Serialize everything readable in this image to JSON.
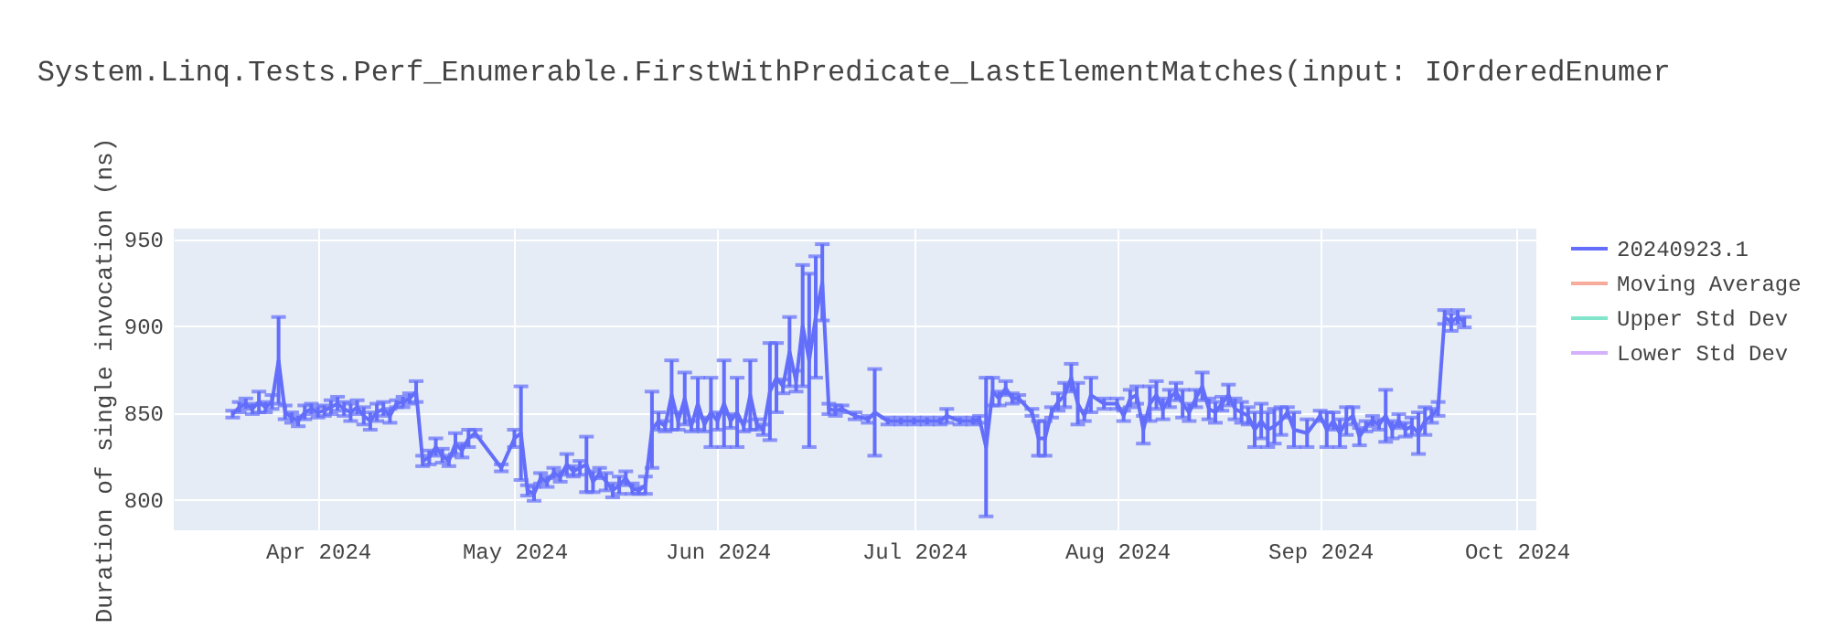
{
  "chart_data": {
    "type": "line",
    "title": "System.Linq.Tests.Perf_Enumerable.FirstWithPredicate_LastElementMatches(input: IOrderedEnumer",
    "ylabel": "Duration of single invocation (ns)",
    "x": [
      "2024-03-19",
      "2024-03-20",
      "2024-03-21",
      "2024-03-22",
      "2024-03-23",
      "2024-03-24",
      "2024-03-25",
      "2024-03-26",
      "2024-03-27",
      "2024-03-28",
      "2024-03-29",
      "2024-03-30",
      "2024-03-31",
      "2024-04-01",
      "2024-04-02",
      "2024-04-03",
      "2024-04-04",
      "2024-04-05",
      "2024-04-06",
      "2024-04-07",
      "2024-04-08",
      "2024-04-09",
      "2024-04-10",
      "2024-04-11",
      "2024-04-12",
      "2024-04-13",
      "2024-04-14",
      "2024-04-15",
      "2024-04-16",
      "2024-04-17",
      "2024-04-18",
      "2024-04-19",
      "2024-04-20",
      "2024-04-21",
      "2024-04-22",
      "2024-04-23",
      "2024-04-24",
      "2024-04-25",
      "2024-04-29",
      "2024-05-01",
      "2024-05-02",
      "2024-05-03",
      "2024-05-04",
      "2024-05-05",
      "2024-05-06",
      "2024-05-07",
      "2024-05-08",
      "2024-05-09",
      "2024-05-10",
      "2024-05-11",
      "2024-05-12",
      "2024-05-13",
      "2024-05-14",
      "2024-05-15",
      "2024-05-16",
      "2024-05-17",
      "2024-05-18",
      "2024-05-19",
      "2024-05-20",
      "2024-05-21",
      "2024-05-22",
      "2024-05-23",
      "2024-05-24",
      "2024-05-25",
      "2024-05-26",
      "2024-05-27",
      "2024-05-28",
      "2024-05-29",
      "2024-05-30",
      "2024-05-31",
      "2024-06-01",
      "2024-06-02",
      "2024-06-03",
      "2024-06-04",
      "2024-06-05",
      "2024-06-06",
      "2024-06-07",
      "2024-06-08",
      "2024-06-09",
      "2024-06-10",
      "2024-06-11",
      "2024-06-12",
      "2024-06-13",
      "2024-06-14",
      "2024-06-15",
      "2024-06-16",
      "2024-06-17",
      "2024-06-18",
      "2024-06-19",
      "2024-06-20",
      "2024-06-22",
      "2024-06-24",
      "2024-06-25",
      "2024-06-27",
      "2024-06-29",
      "2024-07-01",
      "2024-07-03",
      "2024-07-05",
      "2024-07-06",
      "2024-07-08",
      "2024-07-10",
      "2024-07-11",
      "2024-07-12",
      "2024-07-13",
      "2024-07-14",
      "2024-07-15",
      "2024-07-16",
      "2024-07-17",
      "2024-07-19",
      "2024-07-20",
      "2024-07-21",
      "2024-07-22",
      "2024-07-23",
      "2024-07-24",
      "2024-07-25",
      "2024-07-26",
      "2024-07-27",
      "2024-07-28",
      "2024-07-30",
      "2024-08-01",
      "2024-08-02",
      "2024-08-03",
      "2024-08-04",
      "2024-08-05",
      "2024-08-06",
      "2024-08-07",
      "2024-08-08",
      "2024-08-09",
      "2024-08-10",
      "2024-08-11",
      "2024-08-12",
      "2024-08-13",
      "2024-08-14",
      "2024-08-15",
      "2024-08-16",
      "2024-08-17",
      "2024-08-18",
      "2024-08-19",
      "2024-08-20",
      "2024-08-21",
      "2024-08-22",
      "2024-08-23",
      "2024-08-24",
      "2024-08-25",
      "2024-08-26",
      "2024-08-27",
      "2024-08-28",
      "2024-08-30",
      "2024-09-01",
      "2024-09-02",
      "2024-09-03",
      "2024-09-04",
      "2024-09-05",
      "2024-09-06",
      "2024-09-07",
      "2024-09-08",
      "2024-09-09",
      "2024-09-10",
      "2024-09-11",
      "2024-09-12",
      "2024-09-13",
      "2024-09-14",
      "2024-09-15",
      "2024-09-16",
      "2024-09-17",
      "2024-09-18",
      "2024-09-19",
      "2024-09-20",
      "2024-09-21",
      "2024-09-22",
      "2024-09-23"
    ],
    "series": [
      {
        "name": "20240923.1",
        "color": "#636efa",
        "values": [
          849,
          853,
          855,
          852,
          856,
          853,
          856,
          880,
          850,
          847,
          845,
          850,
          852,
          850,
          851,
          853,
          855,
          852,
          850,
          853,
          848,
          845,
          850,
          852,
          848,
          855,
          856,
          858,
          862,
          822,
          824,
          830,
          825,
          822,
          832,
          828,
          835,
          838,
          818,
          835,
          838,
          805,
          803,
          812,
          810,
          815,
          813,
          820,
          816,
          818,
          820,
          810,
          815,
          810,
          805,
          808,
          812,
          806,
          805,
          808,
          840,
          845,
          842,
          860,
          845,
          858,
          842,
          855,
          843,
          850,
          845,
          855,
          845,
          850,
          842,
          860,
          843,
          840,
          862,
          870,
          865,
          885,
          868,
          900,
          880,
          905,
          925,
          852,
          851,
          852,
          848,
          846,
          850,
          845,
          845,
          845,
          845,
          845,
          848,
          845,
          845,
          846,
          830,
          862,
          858,
          864,
          858,
          858,
          850,
          835,
          835,
          850,
          856,
          860,
          870,
          855,
          848,
          860,
          855,
          855,
          848,
          858,
          860,
          840,
          855,
          860,
          852,
          858,
          862,
          855,
          850,
          858,
          865,
          852,
          850,
          855,
          860,
          852,
          850,
          848,
          840,
          845,
          840,
          842,
          845,
          850,
          840,
          838,
          848,
          840,
          845,
          838,
          845,
          848,
          836,
          842,
          845,
          843,
          848,
          840,
          845,
          840,
          842,
          838,
          845,
          848,
          852,
          905,
          902,
          905,
          902
        ],
        "errors": [
          2,
          3,
          3,
          3,
          6,
          3,
          4,
          25,
          4,
          3,
          3,
          4,
          3,
          3,
          3,
          4,
          4,
          4,
          5,
          4,
          5,
          5,
          5,
          4,
          4,
          2,
          3,
          3,
          6,
          3,
          4,
          5,
          4,
          3,
          6,
          4,
          5,
          2,
          2,
          5,
          27,
          3,
          4,
          3,
          3,
          3,
          3,
          6,
          3,
          4,
          16,
          6,
          3,
          5,
          4,
          5,
          4,
          3,
          2,
          5,
          22,
          5,
          3,
          20,
          5,
          15,
          3,
          15,
          4,
          20,
          5,
          25,
          4,
          20,
          3,
          20,
          3,
          3,
          28,
          20,
          4,
          20,
          6,
          35,
          50,
          35,
          22,
          3,
          3,
          2,
          2,
          2,
          25,
          2,
          2,
          2,
          2,
          2,
          4,
          2,
          2,
          2,
          40,
          8,
          4,
          4,
          3,
          2,
          2,
          10,
          10,
          3,
          5,
          7,
          8,
          12,
          3,
          10,
          3,
          3,
          3,
          5,
          5,
          8,
          10,
          8,
          6,
          5,
          5,
          8,
          5,
          5,
          8,
          6,
          6,
          4,
          6,
          6,
          6,
          5,
          10,
          10,
          10,
          10,
          8,
          3,
          10,
          8,
          3,
          10,
          5,
          8,
          8,
          5,
          5,
          3,
          3,
          3,
          15,
          5,
          4,
          4,
          5,
          12,
          8,
          4,
          4,
          4,
          5,
          4,
          3
        ]
      },
      {
        "name": "Moving Average",
        "color": "#f7ab9d",
        "values": [
          null,
          null,
          null,
          null,
          null,
          null,
          null,
          null,
          null,
          null,
          null,
          null,
          null,
          null,
          null,
          null,
          null,
          null,
          null,
          null,
          null,
          null,
          null,
          null,
          null,
          null,
          null,
          null,
          null,
          null,
          null,
          null,
          null,
          null,
          null,
          null,
          null,
          null,
          null,
          null,
          null,
          null,
          null,
          null,
          null,
          null,
          null,
          null,
          null,
          null,
          null,
          null,
          null,
          null,
          null,
          null,
          null,
          null,
          null,
          null,
          null,
          null,
          null,
          null,
          null,
          null,
          null,
          null,
          null,
          null,
          null,
          null,
          null,
          null,
          null,
          null,
          null,
          null,
          null,
          null,
          null,
          null,
          null,
          null,
          null,
          null,
          null,
          null,
          null,
          null,
          null,
          null,
          null,
          null,
          null,
          null,
          null,
          null,
          null,
          null,
          null,
          null,
          null,
          null,
          null,
          null,
          null,
          null,
          null,
          null,
          null,
          null,
          null,
          null,
          null,
          null,
          null,
          null,
          null,
          null,
          null,
          null,
          null,
          null,
          null,
          null,
          null,
          null,
          null,
          null,
          null,
          null,
          null,
          null,
          null,
          null,
          null,
          null,
          null,
          null,
          null,
          null,
          null,
          null,
          null,
          null,
          null,
          null,
          null,
          null,
          null,
          null,
          null,
          null,
          null,
          null,
          null,
          null,
          null,
          null,
          null,
          null,
          null,
          null,
          null,
          null,
          null,
          null,
          null,
          null,
          null
        ]
      },
      {
        "name": "Upper Std Dev",
        "color": "#80e5cb",
        "values": [
          null,
          null,
          null,
          null,
          null,
          null,
          null,
          null,
          null,
          null,
          null,
          null,
          null,
          null,
          null,
          null,
          null,
          null,
          null,
          null,
          null,
          null,
          null,
          null,
          null,
          null,
          null,
          null,
          null,
          null,
          null,
          null,
          null,
          null,
          null,
          null,
          null,
          null,
          null,
          null,
          null,
          null,
          null,
          null,
          null,
          null,
          null,
          null,
          null,
          null,
          null,
          null,
          null,
          null,
          null,
          null,
          null,
          null,
          null,
          null,
          null,
          null,
          null,
          null,
          null,
          null,
          null,
          null,
          null,
          null,
          null,
          null,
          null,
          null,
          null,
          null,
          null,
          null,
          null,
          null,
          null,
          null,
          null,
          null,
          null,
          null,
          null,
          null,
          null,
          null,
          null,
          null,
          null,
          null,
          null,
          null,
          null,
          null,
          null,
          null,
          null,
          null,
          null,
          null,
          null,
          null,
          null,
          null,
          null,
          null,
          null,
          null,
          null,
          null,
          null,
          null,
          null,
          null,
          null,
          null,
          null,
          null,
          null,
          null,
          null,
          null,
          null,
          null,
          null,
          null,
          null,
          null,
          null,
          null,
          null,
          null,
          null,
          null,
          null,
          null,
          null,
          null,
          null,
          null,
          null,
          null,
          null,
          null,
          null,
          null,
          null,
          null,
          null,
          null,
          null,
          null,
          null,
          null,
          null,
          null,
          null,
          null,
          null,
          null,
          null,
          null,
          null,
          null,
          null,
          null,
          null
        ]
      },
      {
        "name": "Lower Std Dev",
        "color": "#d5b1fc",
        "values": [
          null,
          null,
          null,
          null,
          null,
          null,
          null,
          null,
          null,
          null,
          null,
          null,
          null,
          null,
          null,
          null,
          null,
          null,
          null,
          null,
          null,
          null,
          null,
          null,
          null,
          null,
          null,
          null,
          null,
          null,
          null,
          null,
          null,
          null,
          null,
          null,
          null,
          null,
          null,
          null,
          null,
          null,
          null,
          null,
          null,
          null,
          null,
          null,
          null,
          null,
          null,
          null,
          null,
          null,
          null,
          null,
          null,
          null,
          null,
          null,
          null,
          null,
          null,
          null,
          null,
          null,
          null,
          null,
          null,
          null,
          null,
          null,
          null,
          null,
          null,
          null,
          null,
          null,
          null,
          null,
          null,
          null,
          null,
          null,
          null,
          null,
          null,
          null,
          null,
          null,
          null,
          null,
          null,
          null,
          null,
          null,
          null,
          null,
          null,
          null,
          null,
          null,
          null,
          null,
          null,
          null,
          null,
          null,
          null,
          null,
          null,
          null,
          null,
          null,
          null,
          null,
          null,
          null,
          null,
          null,
          null,
          null,
          null,
          null,
          null,
          null,
          null,
          null,
          null,
          null,
          null,
          null,
          null,
          null,
          null,
          null,
          null,
          null,
          null,
          null,
          null,
          null,
          null,
          null,
          null,
          null,
          null,
          null,
          null,
          null,
          null,
          null,
          null,
          null,
          null,
          null,
          null,
          null,
          null,
          null,
          null,
          null,
          null,
          null,
          null,
          null,
          null,
          null,
          null,
          null,
          null
        ]
      }
    ],
    "xlim": [
      "2024-03-10",
      "2024-10-04"
    ],
    "xticks": [
      {
        "value": "2024-04-01",
        "label": "Apr 2024"
      },
      {
        "value": "2024-05-01",
        "label": "May 2024"
      },
      {
        "value": "2024-06-01",
        "label": "Jun 2024"
      },
      {
        "value": "2024-07-01",
        "label": "Jul 2024"
      },
      {
        "value": "2024-08-01",
        "label": "Aug 2024"
      },
      {
        "value": "2024-09-01",
        "label": "Sep 2024"
      },
      {
        "value": "2024-10-01",
        "label": "Oct 2024"
      }
    ],
    "ylim": [
      782,
      956
    ],
    "yticks": [
      800,
      850,
      900,
      950
    ],
    "grid": true,
    "legend": "top right",
    "marker": "none",
    "line_style": "solid"
  }
}
